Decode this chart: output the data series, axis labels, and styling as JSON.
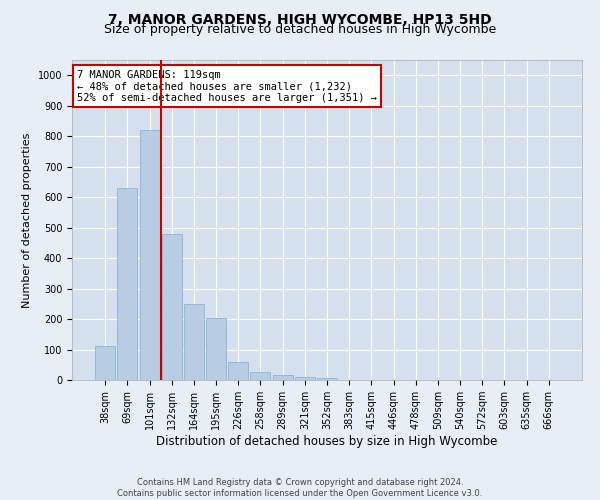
{
  "title": "7, MANOR GARDENS, HIGH WYCOMBE, HP13 5HD",
  "subtitle": "Size of property relative to detached houses in High Wycombe",
  "xlabel": "Distribution of detached houses by size in High Wycombe",
  "ylabel": "Number of detached properties",
  "categories": [
    "38sqm",
    "69sqm",
    "101sqm",
    "132sqm",
    "164sqm",
    "195sqm",
    "226sqm",
    "258sqm",
    "289sqm",
    "321sqm",
    "352sqm",
    "383sqm",
    "415sqm",
    "446sqm",
    "478sqm",
    "509sqm",
    "540sqm",
    "572sqm",
    "603sqm",
    "635sqm",
    "666sqm"
  ],
  "values": [
    110,
    630,
    820,
    480,
    250,
    205,
    60,
    25,
    17,
    11,
    6,
    0,
    0,
    0,
    0,
    0,
    0,
    0,
    0,
    0,
    0
  ],
  "bar_color": "#b8cce4",
  "bar_edge_color": "#7fafd4",
  "vline_x": 2.5,
  "vline_color": "#cc0000",
  "annotation_line1": "7 MANOR GARDENS: 119sqm",
  "annotation_line2": "← 48% of detached houses are smaller (1,232)",
  "annotation_line3": "52% of semi-detached houses are larger (1,351) →",
  "annotation_box_color": "white",
  "annotation_box_edge_color": "#cc0000",
  "ylim": [
    0,
    1050
  ],
  "yticks": [
    0,
    100,
    200,
    300,
    400,
    500,
    600,
    700,
    800,
    900,
    1000
  ],
  "footer_line1": "Contains HM Land Registry data © Crown copyright and database right 2024.",
  "footer_line2": "Contains public sector information licensed under the Open Government Licence v3.0.",
  "background_color": "#e8eef5",
  "plot_background_color": "#d5e0ef",
  "grid_color": "white",
  "title_fontsize": 10,
  "subtitle_fontsize": 9,
  "xlabel_fontsize": 8.5,
  "ylabel_fontsize": 8,
  "tick_fontsize": 7,
  "annotation_fontsize": 7.5,
  "footer_fontsize": 6
}
